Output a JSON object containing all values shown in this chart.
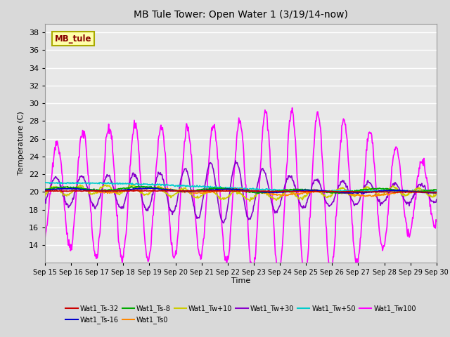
{
  "title": "MB Tule Tower: Open Water 1 (3/19/14-now)",
  "xlabel": "Time",
  "ylabel": "Temperature (C)",
  "ylim": [
    12,
    39
  ],
  "yticks": [
    14,
    16,
    18,
    20,
    22,
    24,
    26,
    28,
    30,
    32,
    34,
    36,
    38
  ],
  "bg_color": "#d9d9d9",
  "plot_bg": "#e8e8e8",
  "series": {
    "Wat1_Ts-32": {
      "color": "#cc0000",
      "lw": 1.2
    },
    "Wat1_Ts-16": {
      "color": "#0000cc",
      "lw": 1.2
    },
    "Wat1_Ts-8": {
      "color": "#00aa00",
      "lw": 1.2
    },
    "Wat1_Ts0": {
      "color": "#ff8800",
      "lw": 1.2
    },
    "Wat1_Tw+10": {
      "color": "#cccc00",
      "lw": 1.2
    },
    "Wat1_Tw+30": {
      "color": "#8800cc",
      "lw": 1.2
    },
    "Wat1_Tw+50": {
      "color": "#00cccc",
      "lw": 1.2
    },
    "Wat1_Tw100": {
      "color": "#ff00ff",
      "lw": 1.2
    }
  },
  "xtick_labels": [
    "Sep 15",
    "Sep 16",
    "Sep 17",
    "Sep 18",
    "Sep 19",
    "Sep 20",
    "Sep 21",
    "Sep 22",
    "Sep 23",
    "Sep 24",
    "Sep 25",
    "Sep 26",
    "Sep 27",
    "Sep 28",
    "Sep 29",
    "Sep 30"
  ],
  "watermark": "MB_tule",
  "watermark_color": "#880000",
  "watermark_bg": "#ffffaa",
  "watermark_border": "#aaaa00"
}
